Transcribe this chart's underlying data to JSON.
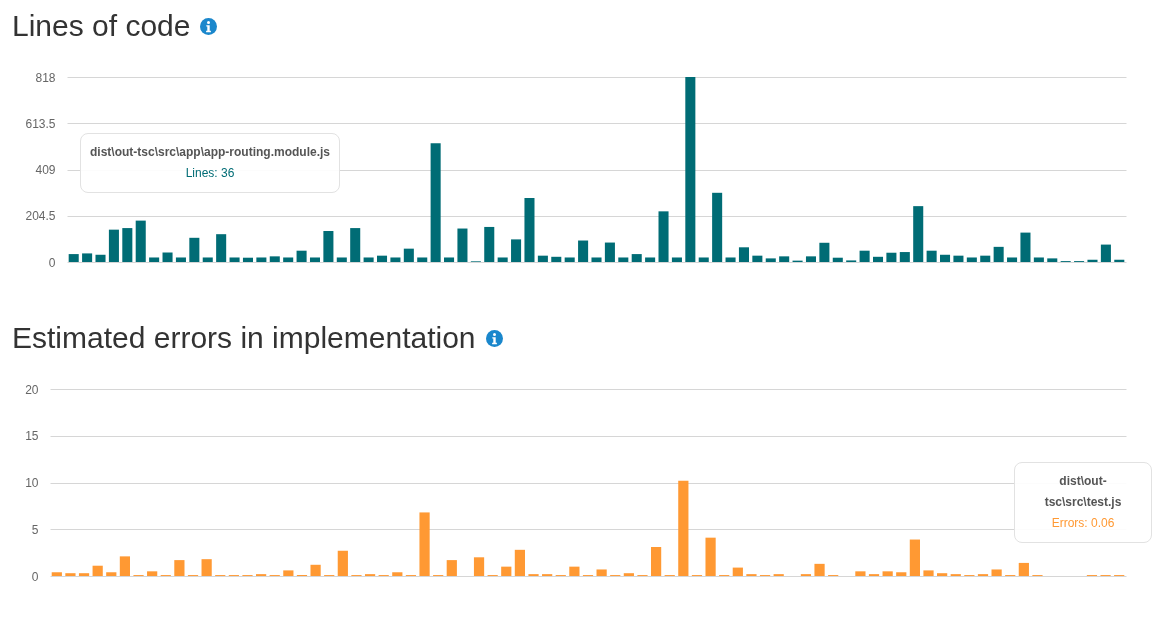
{
  "chart_data": [
    {
      "type": "bar",
      "title": "Lines of code",
      "categories": [
        null,
        null,
        null,
        null,
        null,
        null,
        null,
        null,
        null,
        null,
        null,
        null,
        null,
        null,
        null,
        null,
        null,
        null,
        null,
        null,
        null,
        null,
        null,
        null,
        null,
        null,
        null,
        null,
        null,
        null,
        null,
        null,
        null,
        null,
        null,
        null,
        null,
        null,
        null,
        null,
        null,
        null,
        null,
        null,
        null,
        null,
        null,
        null,
        null,
        null,
        null,
        null,
        null,
        null,
        null,
        null,
        null,
        null,
        null,
        null,
        null,
        null,
        null,
        null,
        null,
        null,
        null,
        null,
        null,
        null,
        null,
        null,
        null,
        null,
        null,
        null,
        null,
        null,
        null
      ],
      "values": [
        35,
        38,
        32,
        143,
        150,
        183,
        20,
        42,
        20,
        107,
        20,
        123,
        20,
        19,
        20,
        25,
        20,
        50,
        20,
        137,
        20,
        150,
        20,
        28,
        20,
        59,
        20,
        525,
        20,
        148,
        3,
        155,
        20,
        100,
        283,
        28,
        23,
        20,
        95,
        20,
        86,
        20,
        35,
        20,
        224,
        20,
        818,
        20,
        306,
        20,
        65,
        28,
        16,
        25,
        6,
        25,
        85,
        19,
        7,
        50,
        23,
        41,
        44,
        247,
        50,
        32,
        28,
        20,
        28,
        67,
        20,
        130,
        20,
        16,
        4,
        4,
        10,
        77,
        10
      ],
      "color": "#006c75",
      "ylim": [
        0,
        818
      ],
      "yticks": [
        0,
        204.5,
        409,
        613.5,
        818
      ],
      "grid": "y",
      "tick_labels": "y",
      "annotations": [
        "dist\\out-tsc\\src\\app\\app-routing.module.js",
        "Lines: 36"
      ]
    },
    {
      "type": "bar",
      "title": "Estimated errors in implementation",
      "categories": [
        null,
        null,
        null,
        null,
        null,
        null,
        null,
        null,
        null,
        null,
        null,
        null,
        null,
        null,
        null,
        null,
        null,
        null,
        null,
        null,
        null,
        null,
        null,
        null,
        null,
        null,
        null,
        null,
        null,
        null,
        null,
        null,
        null,
        null,
        null,
        null,
        null,
        null,
        null,
        null,
        null,
        null,
        null,
        null,
        null,
        null,
        null,
        null,
        null,
        null,
        null,
        null,
        null,
        null,
        null,
        null,
        null,
        null,
        null,
        null,
        null,
        null,
        null,
        null,
        null,
        null,
        null,
        null,
        null,
        null,
        null,
        null,
        null,
        null,
        null,
        null,
        null,
        null,
        null
      ],
      "values": [
        0.4,
        0.3,
        0.3,
        1.1,
        0.4,
        2.1,
        0.1,
        0.5,
        0.1,
        1.7,
        0.1,
        1.8,
        0.1,
        0.1,
        0.1,
        0.2,
        0.1,
        0.6,
        0.1,
        1.2,
        0.1,
        2.7,
        0.1,
        0.2,
        0.1,
        0.4,
        0.1,
        6.8,
        0.1,
        1.7,
        null,
        2.0,
        0.1,
        1.0,
        2.8,
        0.2,
        0.2,
        0.1,
        1.0,
        0.1,
        0.7,
        0.1,
        0.3,
        0.1,
        3.1,
        0.1,
        10.2,
        0.1,
        4.1,
        0.1,
        0.9,
        0.2,
        0.1,
        0.2,
        null,
        0.2,
        1.3,
        0.1,
        null,
        0.5,
        0.2,
        0.5,
        0.4,
        3.9,
        0.6,
        0.3,
        0.2,
        0.1,
        0.2,
        0.7,
        0.1,
        1.4,
        0.1,
        null,
        null,
        null,
        0.1,
        0.1,
        0.1
      ],
      "color": "#ff9933",
      "ylim": [
        0,
        20
      ],
      "yticks": [
        0,
        5,
        10,
        15,
        20
      ],
      "grid": "y",
      "tick_labels": "y",
      "annotations": [
        "dist\\out-tsc\\src\\test.js",
        "Errors: 0.06"
      ]
    }
  ]
}
